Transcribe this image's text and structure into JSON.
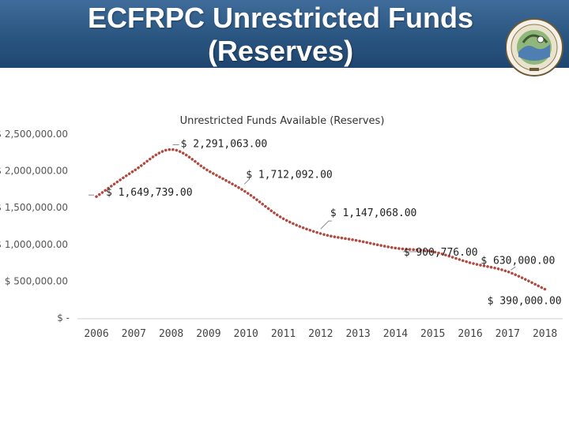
{
  "header": {
    "title_line1": "ECFRPC Unrestricted Funds",
    "title_line2": "(Reserves)",
    "seal_icon": "ecfrpc-seal-icon",
    "colors": {
      "banner": "#2a5581",
      "title": "#ffffff"
    }
  },
  "chart_data": {
    "type": "line",
    "title": "Unrestricted Funds Available (Reserves)",
    "xlabel": "",
    "ylabel": "",
    "categories": [
      "2006",
      "2007",
      "2008",
      "2009",
      "2010",
      "2011",
      "2012",
      "2013",
      "2014",
      "2015",
      "2016",
      "2017",
      "2018"
    ],
    "series": [
      {
        "name": "Unrestricted Funds",
        "values": [
          1649739,
          2000000,
          2291063,
          2000000,
          1712092,
          1350000,
          1147068,
          1050000,
          950000,
          900776,
          750000,
          630000,
          390000
        ],
        "color": "#b04a40",
        "style": "dotted"
      }
    ],
    "data_labels": [
      {
        "index": 0,
        "text": "$ 1,649,739.00"
      },
      {
        "index": 2,
        "text": "$ 2,291,063.00"
      },
      {
        "index": 4,
        "text": "$ 1,712,092.00"
      },
      {
        "index": 6,
        "text": "$ 1,147,068.00"
      },
      {
        "index": 9,
        "text": "$ 900,776.00"
      },
      {
        "index": 11,
        "text": "$ 630,000.00"
      },
      {
        "index": 12,
        "text": "$ 390,000.00"
      }
    ],
    "yticks": [
      0,
      500000,
      1000000,
      1500000,
      2000000,
      2500000
    ],
    "ytick_labels": [
      "$ -",
      "$ 500,000.00",
      "$ 1,000,000.00",
      "$ 1,500,000.00",
      "$ 2,000,000.00",
      "$ 2,500,000.00"
    ],
    "ylim": [
      0,
      2500000
    ],
    "grid": false,
    "legend": "none"
  }
}
